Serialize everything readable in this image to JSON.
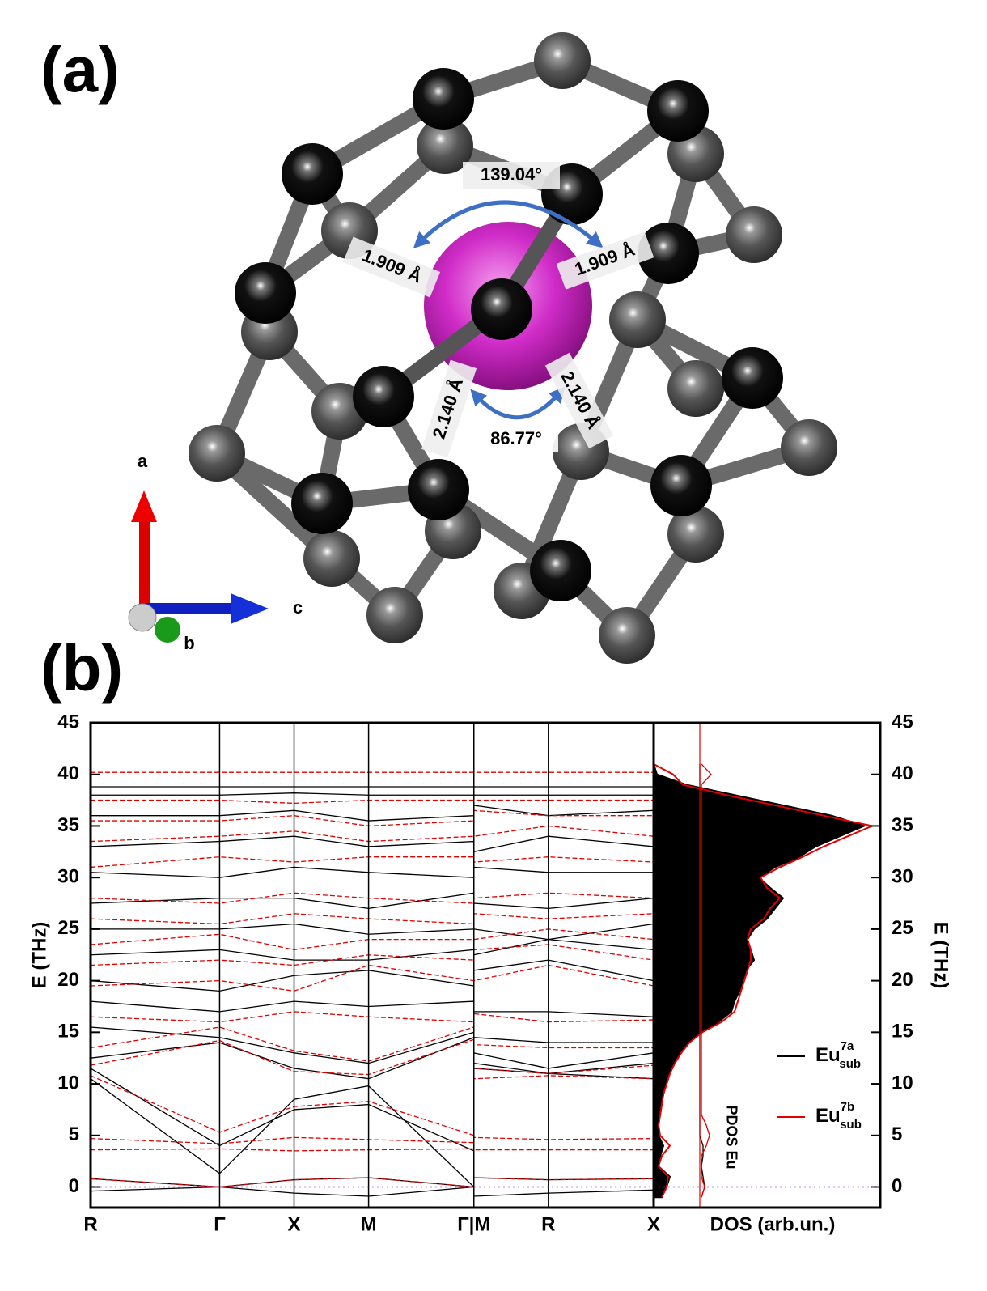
{
  "panel_a": {
    "label": "(a)",
    "angle_top": "139.04°",
    "bond_left": "1.909 Å",
    "bond_right": "1.909 Å",
    "bond_lower_left": "2.140 Å",
    "bond_lower_right": "2.140 Å",
    "angle_bottom": "86.77°",
    "axes": [
      "a",
      "b",
      "c"
    ]
  },
  "panel_b": {
    "label": "(b)"
  },
  "chart_data": [
    {
      "type": "line",
      "ylabel": "E (THz)",
      "ylim": [
        -2,
        45
      ],
      "yticks": [
        0,
        5,
        10,
        15,
        20,
        25,
        30,
        35,
        40,
        45
      ],
      "xlim": [
        0,
        7.56
      ],
      "xticks": [
        {
          "value": 0,
          "label": "R"
        },
        {
          "value": 1.732,
          "label": "Γ"
        },
        {
          "value": 2.732,
          "label": "X"
        },
        {
          "value": 3.732,
          "label": "M"
        },
        {
          "value": 5.146,
          "label": "Γ|M"
        },
        {
          "value": 6.146,
          "label": "R"
        },
        {
          "value": 7.56,
          "label": "X"
        }
      ],
      "x": [
        0,
        1.732,
        2.732,
        3.732,
        5.146,
        5.146,
        6.146,
        7.56
      ],
      "series": [
        {
          "color": "#000000",
          "dash": "solid",
          "bands": [
            [
              0.8,
              0.0,
              0.7,
              0.9,
              0.0,
              0.9,
              0.7,
              0.8
            ],
            [
              -0.4,
              0.0,
              -0.6,
              -0.9,
              0.0,
              -0.9,
              -0.6,
              -0.3
            ],
            [
              10.5,
              1.3,
              8.5,
              9.8,
              0.0,
              11.5,
              11.0,
              10.5
            ],
            [
              11.5,
              4.0,
              7.5,
              8.0,
              3.5,
              12.0,
              11.0,
              12.0
            ],
            [
              12.5,
              14.0,
              11.5,
              10.5,
              14.5,
              13.0,
              11.5,
              13.0
            ],
            [
              15.5,
              14.5,
              13.0,
              12.0,
              15.0,
              14.5,
              14.0,
              14.0
            ],
            [
              18,
              17,
              18,
              17.5,
              18,
              17,
              17,
              16.5
            ],
            [
              20,
              19,
              20.5,
              21,
              19.5,
              21,
              22,
              20
            ],
            [
              22.5,
              23,
              22,
              22,
              23,
              22.5,
              24,
              23
            ],
            [
              25,
              25,
              25.5,
              24.5,
              25,
              25,
              24,
              25.5
            ],
            [
              27.5,
              28,
              28,
              27,
              28.5,
              27.5,
              27,
              28
            ],
            [
              30.5,
              30,
              31,
              30.5,
              30,
              31,
              30.5,
              30.5
            ],
            [
              33,
              33.5,
              34,
              33,
              33.5,
              32.5,
              34,
              33
            ],
            [
              36,
              36,
              36.5,
              35.5,
              36,
              37,
              36,
              36.5
            ],
            [
              38,
              38,
              38.2,
              38,
              38,
              38,
              38,
              38
            ],
            [
              38.8,
              38.8,
              38.8,
              38.8,
              38.8,
              38.8,
              38.8,
              38.8
            ]
          ]
        },
        {
          "color": "#e00000",
          "dash": "dashed",
          "bands": [
            [
              0.8,
              0,
              0.7,
              0.9,
              0,
              0.9,
              0.7,
              0.8
            ],
            [
              3.6,
              3.7,
              3.5,
              3.6,
              3.7,
              3.6,
              3.6,
              3.6
            ],
            [
              4.7,
              4.2,
              4.8,
              4.6,
              4.3,
              4.8,
              4.6,
              4.7
            ],
            [
              10.8,
              5.3,
              7.8,
              8.3,
              5.0,
              10.5,
              10.8,
              10.5
            ],
            [
              11.8,
              14.2,
              11.2,
              10.9,
              14.3,
              11.5,
              11.0,
              11.8
            ],
            [
              13.5,
              15.5,
              13.2,
              12.2,
              15.5,
              13.8,
              13.5,
              13.5
            ],
            [
              16.5,
              16.0,
              17.0,
              16.5,
              16.0,
              16.8,
              16.0,
              16.2
            ],
            [
              19.5,
              20.0,
              19.0,
              21.5,
              20.0,
              20.0,
              21.5,
              19.5
            ],
            [
              21.5,
              22.0,
              21.5,
              22.5,
              22.0,
              23.0,
              23.5,
              22.0
            ],
            [
              23.5,
              24.5,
              23.0,
              24.0,
              24.0,
              24.0,
              25.0,
              24.0
            ],
            [
              26.0,
              25.5,
              26.5,
              26.0,
              25.5,
              26.5,
              26.0,
              26.5
            ],
            [
              28.0,
              27.5,
              28.5,
              28.0,
              27.5,
              28.0,
              28.5,
              28.0
            ],
            [
              31.0,
              32.0,
              31.5,
              32.0,
              32.0,
              31.5,
              32.0,
              31.5
            ],
            [
              33.5,
              34.0,
              34.5,
              33.5,
              34.0,
              34.0,
              35.0,
              34.0
            ],
            [
              35.5,
              35.5,
              36.0,
              35.0,
              35.5,
              36.5,
              36.0,
              36.0
            ],
            [
              37.5,
              37.5,
              37.2,
              37.5,
              37.5,
              37.5,
              37.5,
              37.5
            ],
            [
              40.2,
              40.2,
              40.2,
              40.2,
              40.2,
              40.2,
              40.2,
              40.2
            ]
          ]
        }
      ]
    },
    {
      "type": "area",
      "xlabel": "DOS (arb.un.)",
      "ylabel": "E (THz)",
      "annotation": "PDOS Eu",
      "ylim": [
        -2,
        45
      ],
      "yticks": [
        0,
        5,
        10,
        15,
        20,
        25,
        30,
        35,
        40,
        45
      ],
      "xlim": [
        0,
        1.4
      ],
      "y": [
        -1,
        0,
        1,
        2,
        3,
        4,
        5,
        6,
        7,
        8,
        9,
        10,
        11,
        12,
        13,
        14,
        15,
        16,
        17,
        18,
        19,
        20,
        21,
        22,
        23,
        24,
        25,
        26,
        27,
        28,
        29,
        30,
        31,
        32,
        33,
        34,
        35,
        36,
        37,
        38,
        39,
        40,
        41
      ],
      "series": [
        {
          "name": "Eu",
          "superscript": "7a",
          "subscript": "sub",
          "color": "#000000",
          "fill": true,
          "values": [
            0.05,
            0.08,
            0.1,
            0.03,
            0.04,
            0.06,
            0.03,
            0.03,
            0.04,
            0.05,
            0.06,
            0.08,
            0.1,
            0.13,
            0.17,
            0.22,
            0.3,
            0.4,
            0.48,
            0.5,
            0.53,
            0.55,
            0.57,
            0.62,
            0.6,
            0.58,
            0.62,
            0.7,
            0.75,
            0.8,
            0.72,
            0.65,
            0.75,
            0.9,
            1.0,
            1.15,
            1.3,
            1.1,
            0.8,
            0.5,
            0.2,
            0.02,
            0
          ],
          "pdos": [
            0.01,
            0.03,
            0.02,
            0.01,
            0.02,
            0.02,
            0,
            0,
            0,
            0,
            0,
            0,
            0,
            0,
            0,
            0,
            0,
            0,
            0,
            0,
            0,
            0,
            0,
            0,
            0,
            0,
            0,
            0,
            0,
            0,
            0,
            0,
            0,
            0,
            0,
            0,
            0,
            0,
            0,
            0,
            0,
            0,
            0
          ]
        },
        {
          "name": "Eu",
          "superscript": "7b",
          "subscript": "sub",
          "color": "#e00000",
          "fill": false,
          "values": [
            0.05,
            0.08,
            0.09,
            0.03,
            0.05,
            0.1,
            0.04,
            0.03,
            0.04,
            0.05,
            0.06,
            0.08,
            0.1,
            0.13,
            0.17,
            0.22,
            0.3,
            0.42,
            0.5,
            0.52,
            0.54,
            0.56,
            0.58,
            0.6,
            0.6,
            0.58,
            0.6,
            0.68,
            0.72,
            0.78,
            0.7,
            0.66,
            0.78,
            0.92,
            1.05,
            1.2,
            1.35,
            1.05,
            0.75,
            0.45,
            0.18,
            0.12,
            0
          ],
          "pdos": [
            0,
            0.02,
            0,
            0,
            0,
            0.03,
            0.05,
            0.03,
            0,
            0,
            0,
            0,
            0,
            0,
            0,
            0,
            0,
            0,
            0,
            0,
            0,
            0,
            0,
            0,
            0,
            0,
            0,
            0,
            0,
            0,
            0,
            0,
            0,
            0,
            0,
            0,
            0,
            0,
            0,
            0,
            0,
            0.06,
            0
          ]
        }
      ]
    }
  ]
}
